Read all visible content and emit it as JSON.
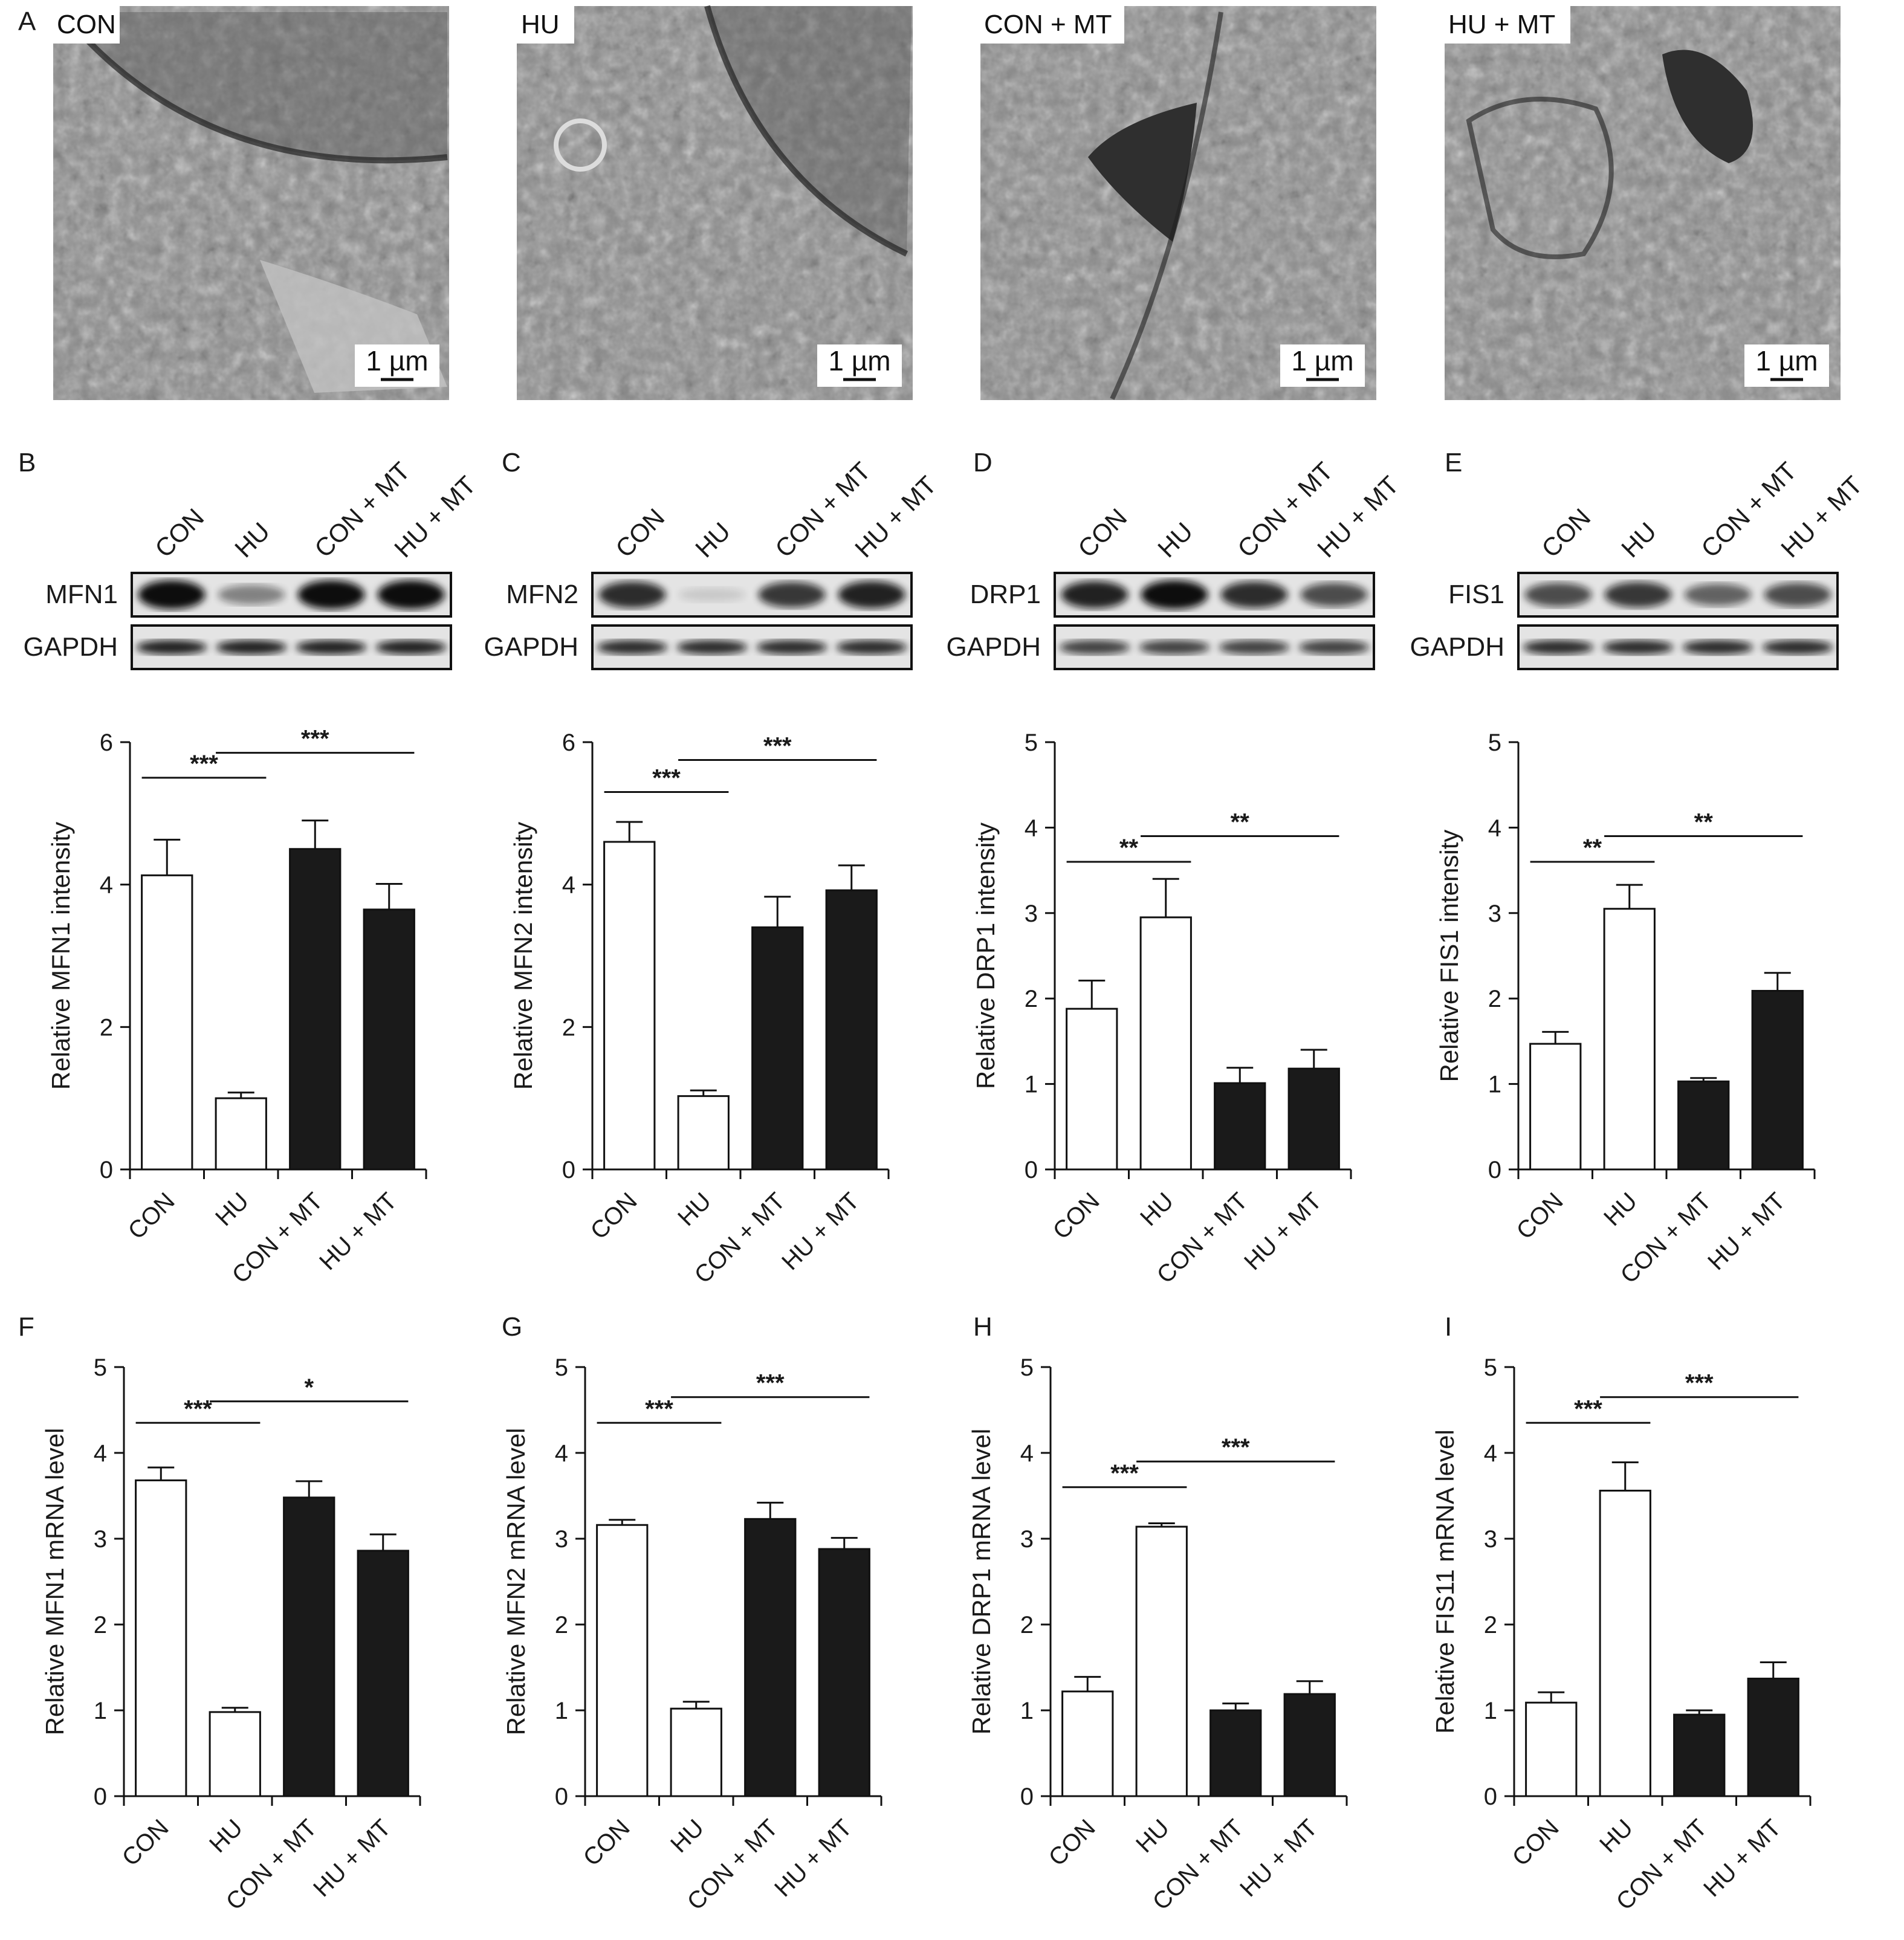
{
  "em_panel": {
    "letter": "A",
    "scale_bar": "1 µm",
    "images": [
      {
        "title": "CON"
      },
      {
        "title": "HU"
      },
      {
        "title": "CON + MT"
      },
      {
        "title": "HU + MT"
      }
    ]
  },
  "blots": [
    {
      "letter": "B",
      "protein": "MFN1",
      "loading": "GAPDH",
      "lanes": [
        "CON",
        "HU",
        "CON + MT",
        "HU + MT"
      ],
      "band_intensity": [
        1.0,
        0.45,
        1.0,
        1.0
      ],
      "loading_intensity": [
        0.9,
        0.9,
        0.9,
        0.9
      ]
    },
    {
      "letter": "C",
      "protein": "MFN2",
      "loading": "GAPDH",
      "lanes": [
        "CON",
        "HU",
        "CON + MT",
        "HU + MT"
      ],
      "band_intensity": [
        0.85,
        0.12,
        0.8,
        0.9
      ],
      "loading_intensity": [
        0.85,
        0.85,
        0.85,
        0.85
      ]
    },
    {
      "letter": "D",
      "protein": "DRP1",
      "loading": "GAPDH",
      "lanes": [
        "CON",
        "HU",
        "CON + MT",
        "HU + MT"
      ],
      "band_intensity": [
        0.9,
        1.0,
        0.85,
        0.7
      ],
      "loading_intensity": [
        0.75,
        0.75,
        0.75,
        0.75
      ]
    },
    {
      "letter": "E",
      "protein": "FIS1",
      "loading": "GAPDH",
      "lanes": [
        "CON",
        "HU",
        "CON + MT",
        "HU + MT"
      ],
      "band_intensity": [
        0.7,
        0.8,
        0.6,
        0.7
      ],
      "loading_intensity": [
        0.85,
        0.85,
        0.85,
        0.85
      ]
    }
  ],
  "chart_data": [
    {
      "type": "bar",
      "panel": "",
      "categories": [
        "CON",
        "HU",
        "CON + MT",
        "HU + MT"
      ],
      "values": [
        4.13,
        1.0,
        4.5,
        3.65
      ],
      "errors": [
        0.5,
        0.08,
        0.4,
        0.36
      ],
      "fill": [
        "#ffffff",
        "#ffffff",
        "#1a1a1a",
        "#1a1a1a"
      ],
      "ylabel": "Relative MFN1 intensity",
      "ylim": [
        0,
        6
      ],
      "yticks": [
        0,
        2,
        4,
        6
      ],
      "sig": [
        {
          "from": 0,
          "to": 1,
          "y": 5.5,
          "label": "***"
        },
        {
          "from": 1,
          "to": 3,
          "y": 5.85,
          "label": "***"
        }
      ]
    },
    {
      "type": "bar",
      "panel": "",
      "categories": [
        "CON",
        "HU",
        "CON + MT",
        "HU + MT"
      ],
      "values": [
        4.6,
        1.03,
        3.4,
        3.92
      ],
      "errors": [
        0.28,
        0.08,
        0.43,
        0.35
      ],
      "fill": [
        "#ffffff",
        "#ffffff",
        "#1a1a1a",
        "#1a1a1a"
      ],
      "ylabel": "Relative MFN2 intensity",
      "ylim": [
        0,
        6
      ],
      "yticks": [
        0,
        2,
        4,
        6
      ],
      "sig": [
        {
          "from": 0,
          "to": 1,
          "y": 5.3,
          "label": "***"
        },
        {
          "from": 1,
          "to": 3,
          "y": 5.75,
          "label": "***"
        }
      ]
    },
    {
      "type": "bar",
      "panel": "",
      "categories": [
        "CON",
        "HU",
        "CON + MT",
        "HU + MT"
      ],
      "values": [
        1.88,
        2.95,
        1.01,
        1.18
      ],
      "errors": [
        0.33,
        0.45,
        0.18,
        0.22
      ],
      "fill": [
        "#ffffff",
        "#ffffff",
        "#1a1a1a",
        "#1a1a1a"
      ],
      "ylabel": "Relative DRP1 intensity",
      "ylim": [
        0,
        5
      ],
      "yticks": [
        0,
        1,
        2,
        3,
        4,
        5
      ],
      "sig": [
        {
          "from": 0,
          "to": 1,
          "y": 3.6,
          "label": "**"
        },
        {
          "from": 1,
          "to": 3,
          "y": 3.9,
          "label": "**"
        }
      ]
    },
    {
      "type": "bar",
      "panel": "",
      "categories": [
        "CON",
        "HU",
        "CON + MT",
        "HU + MT"
      ],
      "values": [
        1.47,
        3.05,
        1.03,
        2.09
      ],
      "errors": [
        0.14,
        0.28,
        0.04,
        0.21
      ],
      "fill": [
        "#ffffff",
        "#ffffff",
        "#1a1a1a",
        "#1a1a1a"
      ],
      "ylabel": "Relative FIS1 intensity",
      "ylim": [
        0,
        5
      ],
      "yticks": [
        0,
        1,
        2,
        3,
        4,
        5
      ],
      "sig": [
        {
          "from": 0,
          "to": 1,
          "y": 3.6,
          "label": "**"
        },
        {
          "from": 1,
          "to": 3,
          "y": 3.9,
          "label": "**"
        }
      ]
    },
    {
      "type": "bar",
      "panel": "F",
      "categories": [
        "CON",
        "HU",
        "CON + MT",
        "HU + MT"
      ],
      "values": [
        3.68,
        0.98,
        3.48,
        2.86
      ],
      "errors": [
        0.15,
        0.05,
        0.19,
        0.19
      ],
      "fill": [
        "#ffffff",
        "#ffffff",
        "#1a1a1a",
        "#1a1a1a"
      ],
      "ylabel": "Relative MFN1 mRNA level",
      "ylim": [
        0,
        5
      ],
      "yticks": [
        0,
        1,
        2,
        3,
        4,
        5
      ],
      "sig": [
        {
          "from": 0,
          "to": 1,
          "y": 4.35,
          "label": "***"
        },
        {
          "from": 1,
          "to": 3,
          "y": 4.6,
          "label": "*"
        }
      ]
    },
    {
      "type": "bar",
      "panel": "G",
      "categories": [
        "CON",
        "HU",
        "CON + MT",
        "HU + MT"
      ],
      "values": [
        3.16,
        1.02,
        3.23,
        2.88
      ],
      "errors": [
        0.06,
        0.08,
        0.19,
        0.13
      ],
      "fill": [
        "#ffffff",
        "#ffffff",
        "#1a1a1a",
        "#1a1a1a"
      ],
      "ylabel": "Relative MFN2 mRNA level",
      "ylim": [
        0,
        5
      ],
      "yticks": [
        0,
        1,
        2,
        3,
        4,
        5
      ],
      "sig": [
        {
          "from": 0,
          "to": 1,
          "y": 4.35,
          "label": "***"
        },
        {
          "from": 1,
          "to": 3,
          "y": 4.65,
          "label": "***"
        }
      ]
    },
    {
      "type": "bar",
      "panel": "H",
      "categories": [
        "CON",
        "HU",
        "CON + MT",
        "HU + MT"
      ],
      "values": [
        1.22,
        3.14,
        1.0,
        1.19
      ],
      "errors": [
        0.17,
        0.04,
        0.08,
        0.15
      ],
      "fill": [
        "#ffffff",
        "#ffffff",
        "#1a1a1a",
        "#1a1a1a"
      ],
      "ylabel": "Relative DRP1 mRNA level",
      "ylim": [
        0,
        5
      ],
      "yticks": [
        0,
        1,
        2,
        3,
        4,
        5
      ],
      "sig": [
        {
          "from": 0,
          "to": 1,
          "y": 3.6,
          "label": "***"
        },
        {
          "from": 1,
          "to": 3,
          "y": 3.9,
          "label": "***"
        }
      ]
    },
    {
      "type": "bar",
      "panel": "I",
      "categories": [
        "CON",
        "HU",
        "CON + MT",
        "HU + MT"
      ],
      "values": [
        1.09,
        3.56,
        0.95,
        1.37
      ],
      "errors": [
        0.12,
        0.33,
        0.05,
        0.19
      ],
      "fill": [
        "#ffffff",
        "#ffffff",
        "#1a1a1a",
        "#1a1a1a"
      ],
      "ylabel": "Relative FIS11 mRNA level",
      "ylim": [
        0,
        5
      ],
      "yticks": [
        0,
        1,
        2,
        3,
        4,
        5
      ],
      "sig": [
        {
          "from": 0,
          "to": 1,
          "y": 4.35,
          "label": "***"
        },
        {
          "from": 1,
          "to": 3,
          "y": 4.65,
          "label": "***"
        }
      ]
    }
  ]
}
